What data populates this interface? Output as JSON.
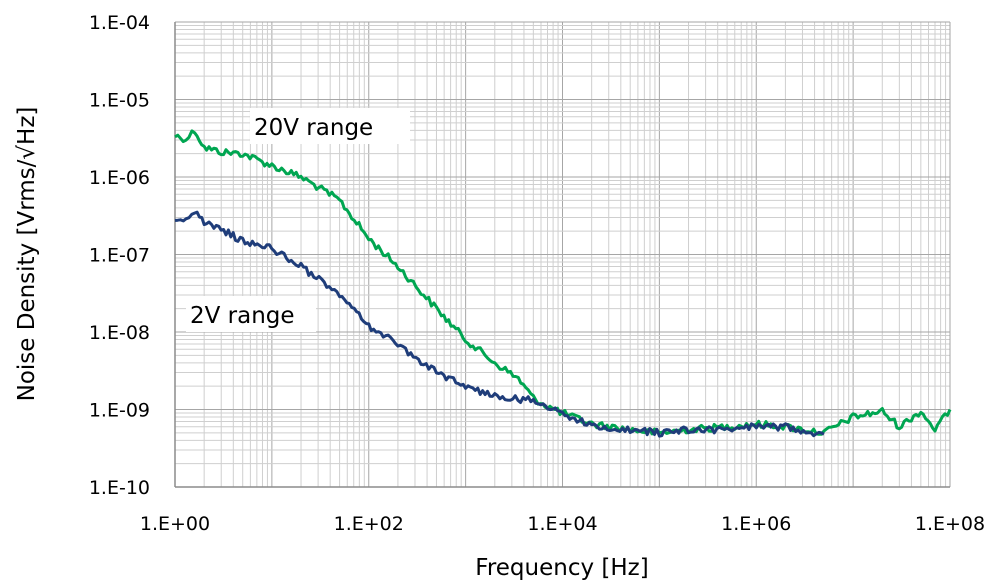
{
  "chart_data": {
    "type": "line",
    "title": "",
    "xlabel": "Frequency [Hz]",
    "ylabel": "Noise Density [Vrms/√Hz]",
    "xscale": "log",
    "yscale": "log",
    "xlim": [
      1,
      100000000
    ],
    "ylim": [
      1e-10,
      0.0001
    ],
    "x_ticks": [
      "1.E+00",
      "1.E+02",
      "1.E+04",
      "1.E+06",
      "1.E+08"
    ],
    "y_ticks": [
      "1.E-10",
      "1.E-09",
      "1.E-08",
      "1.E-07",
      "1.E-06",
      "1.E-05",
      "1.E-04"
    ],
    "grid": true,
    "annotations": [
      {
        "text": "20V range",
        "series": "20V range"
      },
      {
        "text": "2V range",
        "series": "2V range"
      }
    ],
    "series": [
      {
        "name": "20V range",
        "color": "#00a651",
        "x": [
          1,
          1.3,
          1.6,
          2,
          3,
          5,
          10,
          20,
          50,
          100,
          200,
          500,
          1000,
          2000,
          3500,
          5000,
          7000,
          10000,
          20000,
          50000,
          100000,
          200000,
          500000,
          1000000,
          2000000,
          5000000,
          10000000,
          20000000,
          30000000,
          50000000,
          70000000,
          100000000
        ],
        "y": [
          3.4e-06,
          3.1e-06,
          4e-06,
          2.4e-06,
          2.1e-06,
          2e-06,
          1.4e-06,
          1e-06,
          5e-07,
          1.6e-07,
          7e-08,
          2e-08,
          8e-09,
          4e-09,
          2.5e-09,
          1.4e-09,
          1.1e-09,
          9e-10,
          6.5e-10,
          5.5e-10,
          5e-10,
          5.5e-10,
          6e-10,
          6.5e-10,
          6e-10,
          5e-10,
          8e-10,
          9.5e-10,
          6e-10,
          9.5e-10,
          5.5e-10,
          1e-09
        ]
      },
      {
        "name": "2V range",
        "color": "#1f3d7a",
        "x": [
          1,
          1.3,
          1.6,
          2,
          3,
          5,
          10,
          20,
          50,
          100,
          200,
          500,
          1000,
          2000,
          5000,
          10000,
          20000,
          50000,
          100000,
          200000,
          500000,
          1000000,
          2000000,
          5000000
        ],
        "y": [
          3e-07,
          2.8e-07,
          3.6e-07,
          2.5e-07,
          2.1e-07,
          1.5e-07,
          1.2e-07,
          7e-08,
          3e-08,
          1.2e-08,
          7e-09,
          3e-09,
          2e-09,
          1.5e-09,
          1.3e-09,
          9e-10,
          6e-10,
          5.5e-10,
          5e-10,
          5.5e-10,
          5.5e-10,
          6e-10,
          6e-10,
          4.8e-10
        ]
      }
    ]
  }
}
